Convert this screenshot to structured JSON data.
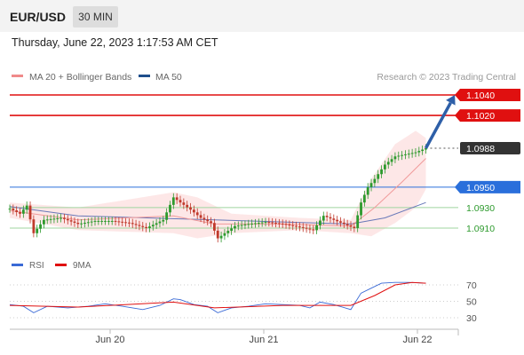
{
  "header": {
    "pair": "EUR/USD",
    "interval": "30 MIN",
    "datetime": "Thursday, June 22, 2023 1:17:53 AM CET"
  },
  "chart_data": [
    {
      "type": "line",
      "legend": [
        {
          "label": "MA 20 + Bollinger Bands",
          "color": "#f08a8a"
        },
        {
          "label": "MA 50",
          "color": "#1f4e8c"
        }
      ],
      "credit": "Research © 2023 Trading Central",
      "x_ticks": [
        "Jun 20",
        "Jun 21",
        "Jun 22"
      ],
      "levels": [
        {
          "label": "1.1040",
          "value": 1.104,
          "role": "resistance",
          "color": "#e01010"
        },
        {
          "label": "1.1020",
          "value": 1.102,
          "role": "resistance",
          "color": "#e01010"
        },
        {
          "label": "1.0988",
          "value": 1.0988,
          "role": "last price",
          "color": "#333333"
        },
        {
          "label": "1.0950",
          "value": 1.095,
          "role": "pivot",
          "color": "#2a6fdb"
        },
        {
          "label": "1.0930",
          "value": 1.093,
          "role": "support",
          "color": "#2d9a2d"
        },
        {
          "label": "1.0910",
          "value": 1.091,
          "role": "support",
          "color": "#2d9a2d"
        }
      ],
      "price_path": [
        [
          0,
          1.0929
        ],
        [
          6,
          1.0924
        ],
        [
          10,
          1.0932
        ],
        [
          14,
          1.0905
        ],
        [
          20,
          1.0918
        ],
        [
          30,
          1.092
        ],
        [
          40,
          1.0914
        ],
        [
          50,
          1.0917
        ],
        [
          60,
          1.0917
        ],
        [
          70,
          1.0915
        ],
        [
          80,
          1.091
        ],
        [
          90,
          1.0918
        ],
        [
          96,
          1.094
        ],
        [
          100,
          1.0935
        ],
        [
          106,
          1.0928
        ],
        [
          112,
          1.092
        ],
        [
          118,
          1.0915
        ],
        [
          122,
          1.09
        ],
        [
          126,
          1.0905
        ],
        [
          132,
          1.0912
        ],
        [
          140,
          1.0914
        ],
        [
          150,
          1.0916
        ],
        [
          160,
          1.0914
        ],
        [
          170,
          1.0911
        ],
        [
          178,
          1.0908
        ],
        [
          184,
          1.0922
        ],
        [
          190,
          1.0918
        ],
        [
          196,
          1.0914
        ],
        [
          202,
          1.091
        ],
        [
          206,
          1.0935
        ],
        [
          210,
          1.095
        ],
        [
          214,
          1.0958
        ],
        [
          220,
          1.0972
        ],
        [
          226,
          1.098
        ],
        [
          232,
          1.0982
        ],
        [
          238,
          1.0984
        ],
        [
          244,
          1.0988
        ]
      ],
      "ma50_path": [
        [
          0,
          1.0931
        ],
        [
          40,
          1.0922
        ],
        [
          100,
          1.0919
        ],
        [
          160,
          1.0916
        ],
        [
          200,
          1.0914
        ],
        [
          220,
          1.092
        ],
        [
          244,
          1.0935
        ]
      ],
      "ma20_path": [
        [
          0,
          1.0927
        ],
        [
          40,
          1.0918
        ],
        [
          96,
          1.0922
        ],
        [
          120,
          1.0914
        ],
        [
          160,
          1.0914
        ],
        [
          200,
          1.0912
        ],
        [
          214,
          1.093
        ],
        [
          230,
          1.0955
        ],
        [
          244,
          1.0978
        ]
      ],
      "bands_upper": [
        [
          0,
          1.0935
        ],
        [
          40,
          1.093
        ],
        [
          96,
          1.0945
        ],
        [
          110,
          1.094
        ],
        [
          130,
          1.0924
        ],
        [
          170,
          1.092
        ],
        [
          200,
          1.0918
        ],
        [
          212,
          1.0958
        ],
        [
          226,
          1.0992
        ],
        [
          238,
          1.1005
        ],
        [
          244,
          1.0998
        ]
      ],
      "bands_lower": [
        [
          0,
          1.092
        ],
        [
          40,
          1.0908
        ],
        [
          96,
          1.0905
        ],
        [
          110,
          1.09
        ],
        [
          130,
          1.0905
        ],
        [
          170,
          1.0908
        ],
        [
          200,
          1.0905
        ],
        [
          212,
          1.0902
        ],
        [
          226,
          1.0915
        ],
        [
          238,
          1.093
        ],
        [
          244,
          1.0948
        ]
      ],
      "arrow": {
        "from": [
          244,
          1.0988
        ],
        "to": [
          261,
          1.104
        ]
      }
    },
    {
      "type": "line",
      "legend": [
        {
          "label": "RSI",
          "color": "#3a6ad6"
        },
        {
          "label": "9MA",
          "color": "#e01010"
        }
      ],
      "y_ticks": [
        {
          "label": "70",
          "value": 70
        },
        {
          "label": "50",
          "value": 50
        },
        {
          "label": "30",
          "value": 30
        }
      ],
      "rsi_path": [
        [
          0,
          46
        ],
        [
          8,
          44
        ],
        [
          14,
          36
        ],
        [
          22,
          44
        ],
        [
          34,
          42
        ],
        [
          46,
          44
        ],
        [
          56,
          47
        ],
        [
          66,
          44
        ],
        [
          78,
          40
        ],
        [
          88,
          45
        ],
        [
          96,
          53
        ],
        [
          100,
          52
        ],
        [
          108,
          46
        ],
        [
          116,
          44
        ],
        [
          122,
          36
        ],
        [
          130,
          42
        ],
        [
          140,
          44
        ],
        [
          150,
          47
        ],
        [
          160,
          46
        ],
        [
          170,
          45
        ],
        [
          176,
          42
        ],
        [
          182,
          49
        ],
        [
          190,
          46
        ],
        [
          200,
          40
        ],
        [
          206,
          60
        ],
        [
          212,
          66
        ],
        [
          218,
          72
        ],
        [
          226,
          73
        ],
        [
          234,
          73
        ],
        [
          244,
          72
        ]
      ],
      "ma9_path": [
        [
          0,
          45
        ],
        [
          40,
          43
        ],
        [
          96,
          49
        ],
        [
          120,
          42
        ],
        [
          160,
          45
        ],
        [
          200,
          45
        ],
        [
          214,
          57
        ],
        [
          226,
          70
        ],
        [
          236,
          73
        ],
        [
          244,
          72
        ]
      ]
    }
  ]
}
